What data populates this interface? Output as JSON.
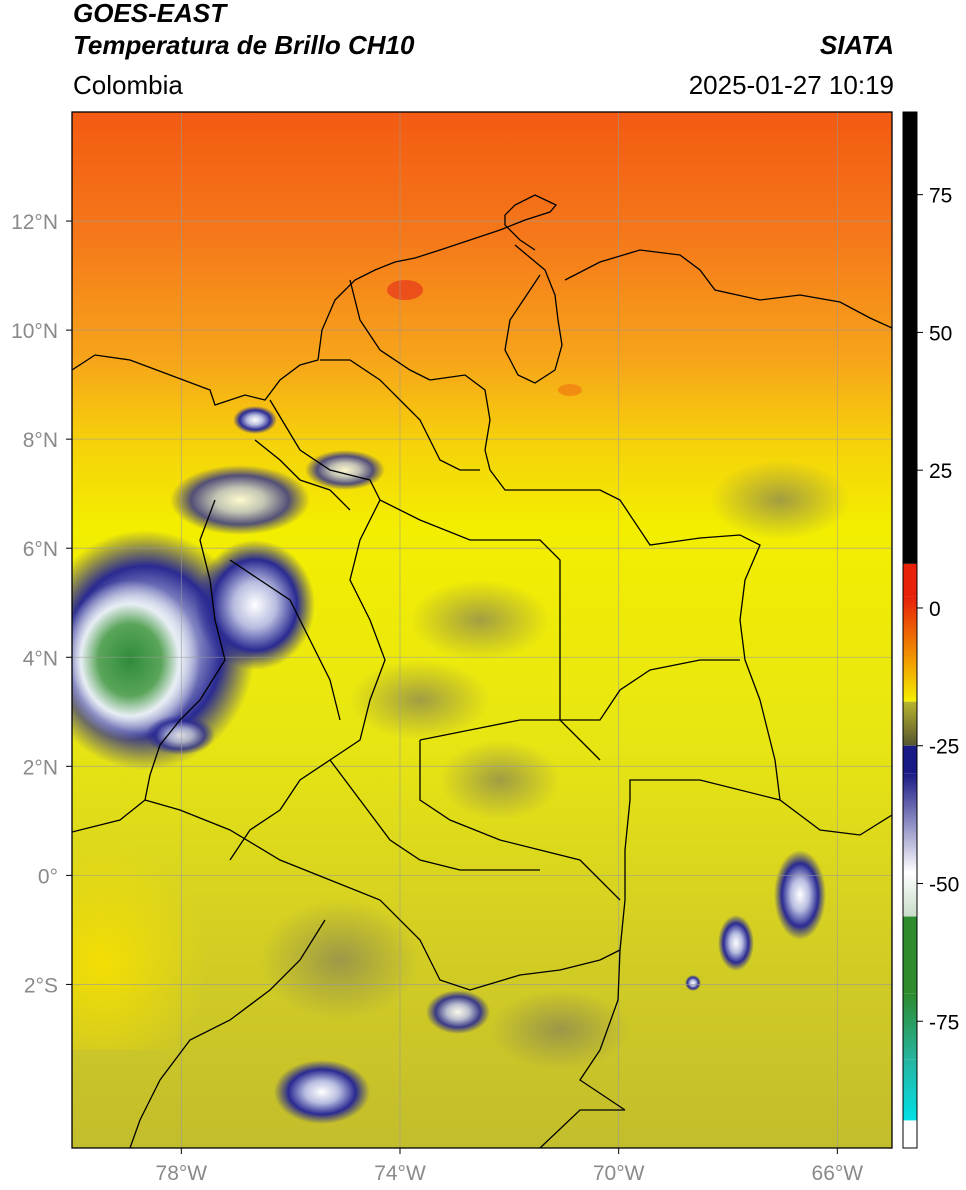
{
  "header": {
    "satellite": "GOES-EAST",
    "product": "Temperatura de Brillo CH10",
    "brand": "SIATA",
    "region": "Colombia",
    "timestamp": "2025-01-27 10:19"
  },
  "map": {
    "lon_range": [
      -80,
      -65
    ],
    "lat_range": [
      -5,
      14
    ],
    "lon_ticks": [
      {
        "value": -78,
        "label": "78°W"
      },
      {
        "value": -74,
        "label": "74°W"
      },
      {
        "value": -70,
        "label": "70°W"
      },
      {
        "value": -66,
        "label": "66°W"
      }
    ],
    "lat_ticks": [
      {
        "value": 12,
        "label": "12°N"
      },
      {
        "value": 10,
        "label": "10°N"
      },
      {
        "value": 8,
        "label": "8°N"
      },
      {
        "value": 6,
        "label": "6°N"
      },
      {
        "value": 4,
        "label": "4°N"
      },
      {
        "value": 2,
        "label": "2°N"
      },
      {
        "value": 0,
        "label": "0°"
      },
      {
        "value": -2,
        "label": "2°S"
      }
    ],
    "gridlines": true
  },
  "colorbar": {
    "range": [
      -98,
      90
    ],
    "ticks": [
      {
        "value": 75,
        "label": "75"
      },
      {
        "value": 50,
        "label": "50"
      },
      {
        "value": 25,
        "label": "25"
      },
      {
        "value": 0,
        "label": "0"
      },
      {
        "value": -25,
        "label": "-25"
      },
      {
        "value": -50,
        "label": "-50"
      },
      {
        "value": -75,
        "label": "-75"
      }
    ],
    "colors": {
      "black": "#000000",
      "red": "#e8200a",
      "orange": "#f08a00",
      "yellow": "#f5f000",
      "olive": "#b9b52c",
      "navy": "#1a1a86",
      "white": "#ffffff",
      "green": "#2e8b2e",
      "teal": "#25b5a0",
      "cyan": "#00e0e6"
    }
  }
}
